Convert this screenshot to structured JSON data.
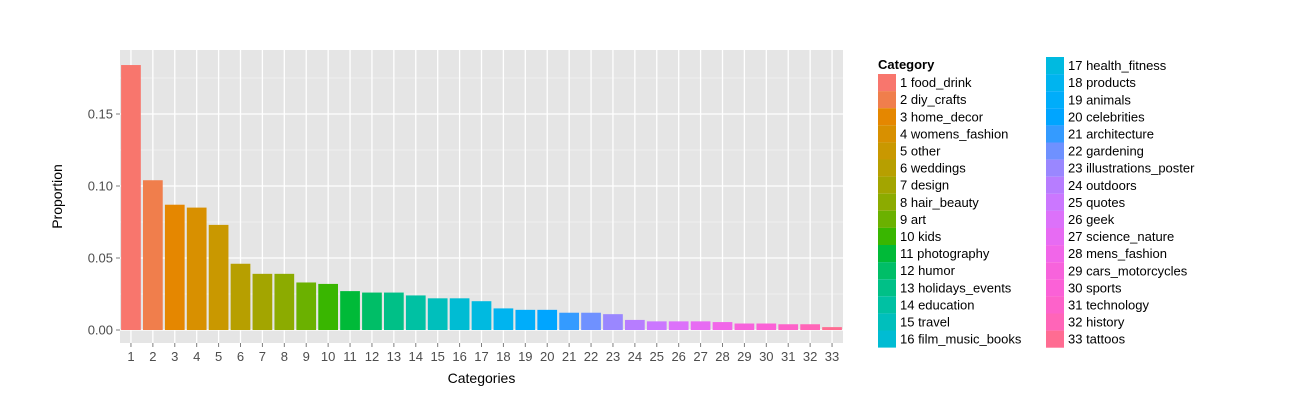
{
  "chart_data": {
    "type": "bar",
    "title": "",
    "xlabel": "Categories",
    "ylabel": "Proportion",
    "ylim": [
      0,
      0.185
    ],
    "yticks": [
      "0.00",
      "0.05",
      "0.10",
      "0.15"
    ],
    "grid": true,
    "legend_title": "Category",
    "legend_placement": "right",
    "categories": [
      "1",
      "2",
      "3",
      "4",
      "5",
      "6",
      "7",
      "8",
      "9",
      "10",
      "11",
      "12",
      "13",
      "14",
      "15",
      "16",
      "17",
      "18",
      "19",
      "20",
      "21",
      "22",
      "23",
      "24",
      "25",
      "26",
      "27",
      "28",
      "29",
      "30",
      "31",
      "32",
      "33"
    ],
    "values": [
      0.184,
      0.104,
      0.087,
      0.085,
      0.073,
      0.046,
      0.039,
      0.039,
      0.033,
      0.032,
      0.027,
      0.026,
      0.026,
      0.024,
      0.022,
      0.022,
      0.02,
      0.015,
      0.014,
      0.014,
      0.012,
      0.012,
      0.011,
      0.007,
      0.006,
      0.006,
      0.006,
      0.0055,
      0.0045,
      0.0045,
      0.004,
      0.004,
      0.002
    ],
    "legend_entries": [
      "1 food_drink",
      "2 diy_crafts",
      "3 home_decor",
      "4 womens_fashion",
      "5 other",
      "6 weddings",
      "7 design",
      "8 hair_beauty",
      "9 art",
      "10 kids",
      "11 photography",
      "12 humor",
      "13 holidays_events",
      "14 education",
      "15 travel",
      "16 film_music_books",
      "17 health_fitness",
      "18 products",
      "19 animals",
      "20 celebrities",
      "21 architecture",
      "22 gardening",
      "23 illustrations_poster",
      "24 outdoors",
      "25 quotes",
      "26 geek",
      "27 science_nature",
      "28 mens_fashion",
      "29 cars_motorcycles",
      "30 sports",
      "31 technology",
      "32 history",
      "33 tattoos"
    ],
    "colors": [
      "#F8766D",
      "#F07E4C",
      "#E58700",
      "#D89000",
      "#C99800",
      "#B79F00",
      "#A3A500",
      "#8CAB00",
      "#6BB100",
      "#39B600",
      "#00BA38",
      "#00BE67",
      "#00C087",
      "#00C1A3",
      "#00BFBC",
      "#00BCD3",
      "#00BAE0",
      "#00B4EF",
      "#00ADFA",
      "#00A5FF",
      "#349BFF",
      "#6F91FF",
      "#9A87FF",
      "#B77DFF",
      "#CB77FF",
      "#DC71FA",
      "#E76BF3",
      "#F166E9",
      "#F763DC",
      "#FB61D7",
      "#FD62CA",
      "#FF65B8",
      "#FF6C92"
    ]
  }
}
